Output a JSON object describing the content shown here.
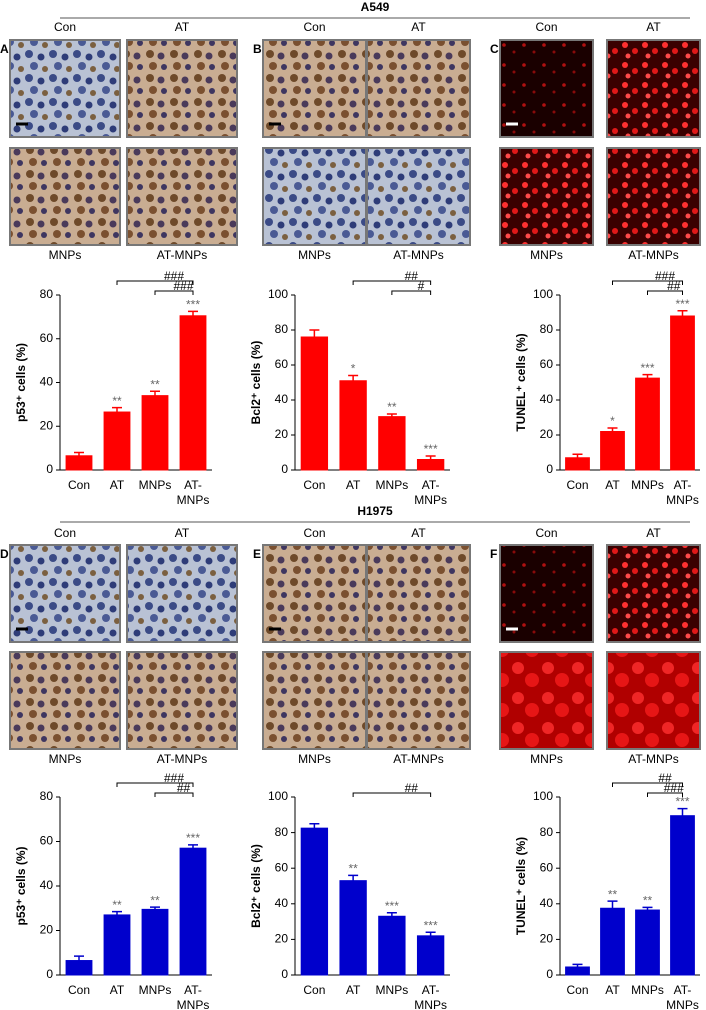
{
  "sections": [
    {
      "title": "A549",
      "panels": [
        {
          "letter": "A",
          "images": [
            "Con",
            "AT",
            "MNPs",
            "AT-MNPs"
          ]
        },
        {
          "letter": "B",
          "images": [
            "Con",
            "AT",
            "MNPs",
            "AT-MNPs"
          ]
        },
        {
          "letter": "C",
          "images": [
            "Con",
            "AT",
            "MNPs",
            "AT-MNPs"
          ]
        }
      ]
    },
    {
      "title": "H1975",
      "panels": [
        {
          "letter": "D",
          "images": [
            "Con",
            "AT",
            "MNPs",
            "AT-MNPs"
          ]
        },
        {
          "letter": "E",
          "images": [
            "Con",
            "AT",
            "MNPs",
            "AT-MNPs"
          ]
        },
        {
          "letter": "F",
          "images": [
            "Con",
            "AT",
            "MNPs",
            "AT-MNPs"
          ]
        }
      ]
    }
  ],
  "chart_data": [
    {
      "type": "bar",
      "ylabel": "p53⁺ cells (%)",
      "categories": [
        "Con",
        "AT",
        "MNPs",
        "AT-MNPs"
      ],
      "values": [
        6.5,
        26.5,
        34,
        70.5
      ],
      "errors": [
        1.5,
        2,
        2,
        2
      ],
      "color": "#ff0000",
      "ylim": [
        0,
        80
      ],
      "yticks": [
        0,
        20,
        40,
        60,
        80
      ],
      "significance": [
        null,
        "**",
        "**",
        "***"
      ],
      "comparisons": [
        {
          "label": "###",
          "from": "AT",
          "to": "AT-MNPs"
        },
        {
          "label": "###",
          "from": "MNPs",
          "to": "AT-MNPs"
        }
      ]
    },
    {
      "type": "bar",
      "ylabel": "Bcl2⁺ cells (%)",
      "categories": [
        "Con",
        "AT",
        "MNPs",
        "AT-MNPs"
      ],
      "values": [
        76,
        51,
        30.5,
        6
      ],
      "errors": [
        4,
        3,
        1.5,
        2
      ],
      "color": "#ff0000",
      "ylim": [
        0,
        100
      ],
      "yticks": [
        0,
        20,
        40,
        60,
        80,
        100
      ],
      "significance": [
        null,
        "*",
        "**",
        "***"
      ],
      "comparisons": [
        {
          "label": "##",
          "from": "AT",
          "to": "AT-MNPs"
        },
        {
          "label": "#",
          "from": "MNPs",
          "to": "AT-MNPs"
        }
      ]
    },
    {
      "type": "bar",
      "ylabel": "TUNEL⁺ cells (%)",
      "categories": [
        "Con",
        "AT",
        "MNPs",
        "AT-MNPs"
      ],
      "values": [
        7,
        22,
        52.5,
        88
      ],
      "errors": [
        2,
        2,
        2,
        3
      ],
      "color": "#ff0000",
      "ylim": [
        0,
        100
      ],
      "yticks": [
        0,
        20,
        40,
        60,
        80,
        100
      ],
      "significance": [
        null,
        "*",
        "***",
        "***"
      ],
      "comparisons": [
        {
          "label": "###",
          "from": "AT",
          "to": "AT-MNPs"
        },
        {
          "label": "##",
          "from": "MNPs",
          "to": "AT-MNPs"
        }
      ]
    },
    {
      "type": "bar",
      "ylabel": "p53⁺ cells (%)",
      "categories": [
        "Con",
        "AT",
        "MNPs",
        "AT-MNPs"
      ],
      "values": [
        6.5,
        27,
        29.5,
        57
      ],
      "errors": [
        2,
        1.5,
        1,
        1.5
      ],
      "color": "#0000cc",
      "ylim": [
        0,
        80
      ],
      "yticks": [
        0,
        20,
        40,
        60,
        80
      ],
      "significance": [
        null,
        "**",
        "**",
        "***"
      ],
      "comparisons": [
        {
          "label": "###",
          "from": "AT",
          "to": "AT-MNPs"
        },
        {
          "label": "##",
          "from": "MNPs",
          "to": "AT-MNPs"
        }
      ]
    },
    {
      "type": "bar",
      "ylabel": "Bcl2⁺ cells (%)",
      "categories": [
        "Con",
        "AT",
        "MNPs",
        "AT-MNPs"
      ],
      "values": [
        82.5,
        53,
        33,
        22
      ],
      "errors": [
        2.5,
        3,
        2,
        2
      ],
      "color": "#0000cc",
      "ylim": [
        0,
        100
      ],
      "yticks": [
        0,
        20,
        40,
        60,
        80,
        100
      ],
      "significance": [
        null,
        "**",
        "***",
        "***"
      ],
      "comparisons": [
        {
          "label": "##",
          "from": "AT",
          "to": "AT-MNPs"
        }
      ]
    },
    {
      "type": "bar",
      "ylabel": "TUNEL⁺ cells (%)",
      "categories": [
        "Con",
        "AT",
        "MNPs",
        "AT-MNPs"
      ],
      "values": [
        4.5,
        37.5,
        36.5,
        89.5
      ],
      "errors": [
        1.5,
        4,
        1.5,
        4
      ],
      "color": "#0000cc",
      "ylim": [
        0,
        100
      ],
      "yticks": [
        0,
        20,
        40,
        60,
        80,
        100
      ],
      "significance": [
        null,
        "**",
        "**",
        "***"
      ],
      "comparisons": [
        {
          "label": "##",
          "from": "AT",
          "to": "AT-MNPs"
        },
        {
          "label": "###",
          "from": "MNPs",
          "to": "AT-MNPs"
        }
      ]
    }
  ]
}
